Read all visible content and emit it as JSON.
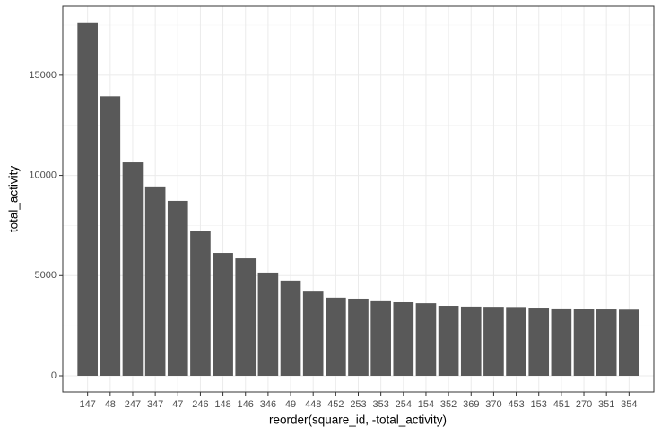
{
  "chart_data": {
    "type": "bar",
    "x_label": "reorder(square_id, -total_activity)",
    "y_label": "total_activity",
    "categories": [
      "147",
      "48",
      "247",
      "347",
      "47",
      "246",
      "148",
      "146",
      "346",
      "49",
      "448",
      "452",
      "253",
      "353",
      "254",
      "154",
      "352",
      "369",
      "370",
      "453",
      "153",
      "451",
      "270",
      "351",
      "354"
    ],
    "values": [
      17600,
      13950,
      10650,
      9450,
      8730,
      7250,
      6130,
      5860,
      5150,
      4750,
      4200,
      3900,
      3850,
      3720,
      3670,
      3620,
      3490,
      3450,
      3440,
      3430,
      3400,
      3360,
      3350,
      3310,
      3300
    ],
    "color": "#595959",
    "ylim": [
      -806,
      18440
    ],
    "yticks": [
      0,
      5000,
      10000,
      15000
    ],
    "y_minor_grid": [
      2500,
      7500,
      12500,
      17500
    ],
    "grid": true
  }
}
